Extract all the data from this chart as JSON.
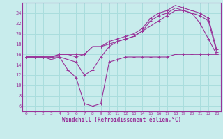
{
  "background_color": "#c8ecec",
  "plot_bg_color": "#c8ecec",
  "line_color": "#993399",
  "grid_color": "#aadddd",
  "xlabel": "Windchill (Refroidissement éolien,°C)",
  "xlim": [
    -0.5,
    23.5
  ],
  "ylim": [
    5,
    26
  ],
  "yticks": [
    6,
    8,
    10,
    12,
    14,
    16,
    18,
    20,
    22,
    24
  ],
  "xticks": [
    0,
    1,
    2,
    3,
    4,
    5,
    6,
    7,
    8,
    9,
    10,
    11,
    12,
    13,
    14,
    15,
    16,
    17,
    18,
    19,
    20,
    21,
    22,
    23
  ],
  "series": [
    {
      "x": [
        0,
        1,
        2,
        3,
        4,
        5,
        6,
        7,
        8,
        9,
        10,
        11,
        12,
        13,
        14,
        15,
        16,
        17,
        18,
        19,
        20,
        21,
        22,
        23
      ],
      "y": [
        15.5,
        15.5,
        15.5,
        15.0,
        15.5,
        13.0,
        11.5,
        6.5,
        6.0,
        6.5,
        14.5,
        15.0,
        15.5,
        15.5,
        15.5,
        15.5,
        15.5,
        15.5,
        16.0,
        16.0,
        16.0,
        16.0,
        16.0,
        16.0
      ]
    },
    {
      "x": [
        0,
        1,
        2,
        3,
        4,
        5,
        6,
        7,
        8,
        9,
        10,
        11,
        12,
        13,
        14,
        15,
        16,
        17,
        18,
        19,
        20,
        21,
        22,
        23
      ],
      "y": [
        15.5,
        15.5,
        15.5,
        15.5,
        15.5,
        15.0,
        14.5,
        12.0,
        13.0,
        15.5,
        17.5,
        18.5,
        19.0,
        19.5,
        20.5,
        21.5,
        22.5,
        23.5,
        24.5,
        24.5,
        24.0,
        22.0,
        19.0,
        16.0
      ]
    },
    {
      "x": [
        0,
        1,
        2,
        3,
        4,
        5,
        6,
        7,
        8,
        9,
        10,
        11,
        12,
        13,
        14,
        15,
        16,
        17,
        18,
        19,
        20,
        21,
        22,
        23
      ],
      "y": [
        15.5,
        15.5,
        15.5,
        15.5,
        16.0,
        16.0,
        15.5,
        16.0,
        17.5,
        17.5,
        18.0,
        18.5,
        19.0,
        19.5,
        20.5,
        22.5,
        23.5,
        24.0,
        25.0,
        24.5,
        24.0,
        23.5,
        22.5,
        16.5
      ]
    },
    {
      "x": [
        0,
        1,
        2,
        3,
        4,
        5,
        6,
        7,
        8,
        9,
        10,
        11,
        12,
        13,
        14,
        15,
        16,
        17,
        18,
        19,
        20,
        21,
        22,
        23
      ],
      "y": [
        15.5,
        15.5,
        15.5,
        15.5,
        16.0,
        16.0,
        16.0,
        16.0,
        17.5,
        17.5,
        18.5,
        19.0,
        19.5,
        20.0,
        21.0,
        23.0,
        24.0,
        24.5,
        25.5,
        25.0,
        24.5,
        24.0,
        23.0,
        17.0
      ]
    }
  ]
}
